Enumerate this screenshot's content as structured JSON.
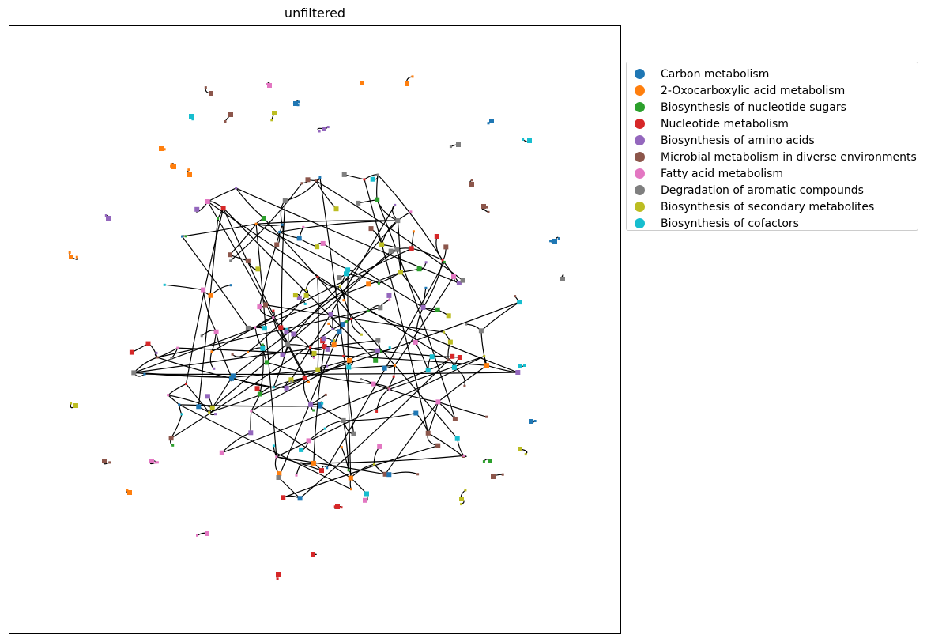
{
  "title": "unfiltered",
  "legend": [
    {
      "label": "Carbon metabolism",
      "color": "#1f77b4"
    },
    {
      "label": "2-Oxocarboxylic acid metabolism",
      "color": "#ff7f0e"
    },
    {
      "label": "Biosynthesis of nucleotide sugars",
      "color": "#2ca02c"
    },
    {
      "label": "Nucleotide metabolism",
      "color": "#d62728"
    },
    {
      "label": "Biosynthesis of amino acids",
      "color": "#9467bd"
    },
    {
      "label": "Microbial metabolism in diverse environments",
      "color": "#8c564b"
    },
    {
      "label": "Fatty acid metabolism",
      "color": "#e377c2"
    },
    {
      "label": "Degradation of aromatic compounds",
      "color": "#7f7f7f"
    },
    {
      "label": "Biosynthesis of secondary metabolites",
      "color": "#bcbd22"
    },
    {
      "label": "Biosynthesis of cofactors",
      "color": "#17becf"
    }
  ]
}
